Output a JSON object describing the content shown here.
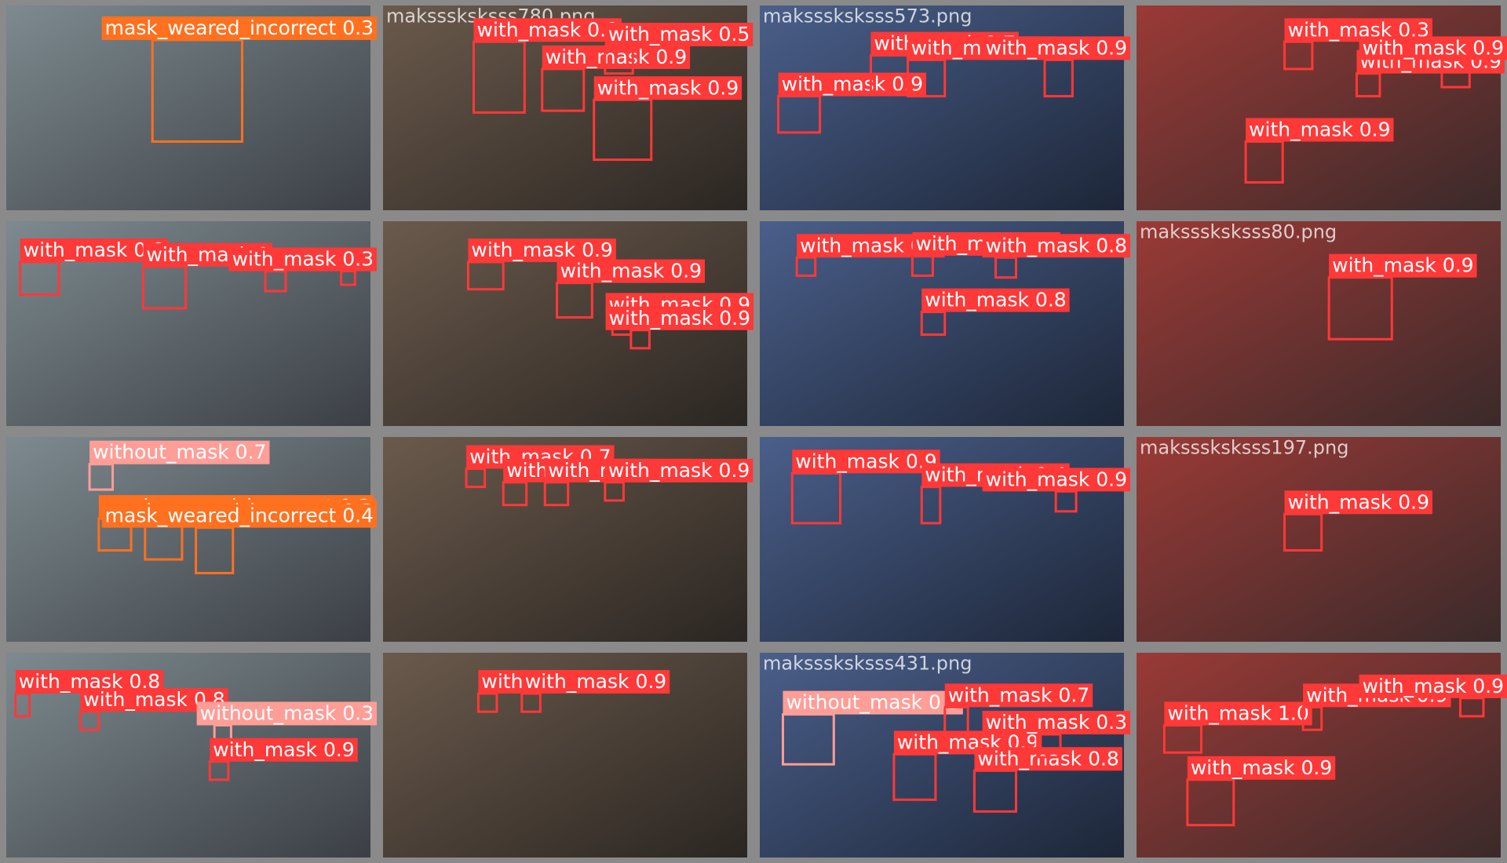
{
  "class_colors": {
    "with_mask": "#ff3838",
    "without_mask": "#ff9d97",
    "mask_weared_incorrect": "#ff701f"
  },
  "tiles": [
    {
      "detections": [
        {
          "label": "mask_weared_incorrect 0.3"
        }
      ]
    },
    {
      "filename": "maksssksksss780.png",
      "detections": [
        {
          "label": "with_mask 0.8"
        },
        {
          "label": "with_mask 0.9"
        },
        {
          "label": "with_mask 0.5"
        },
        {
          "label": "with_mask 0.9"
        }
      ]
    },
    {
      "filename": "maksssksksss573.png",
      "detections": [
        {
          "label": "with_mask 0.9"
        },
        {
          "label": "with_mask 0.7"
        },
        {
          "label": "with_mask 0.3"
        },
        {
          "label": "with_mask 0.9"
        }
      ]
    },
    {
      "detections": [
        {
          "label": "with_mask 0.9"
        },
        {
          "label": "with_mask 0.3"
        },
        {
          "label": "with_mask 0.9"
        },
        {
          "label": "with_mask 0.9"
        }
      ]
    },
    {
      "detections": [
        {
          "label": "with_mask 0.9"
        },
        {
          "label": "with_mask 0"
        },
        {
          "label": "with_mask 0.3"
        },
        {
          "label": "with_mask 0.3"
        }
      ]
    },
    {
      "detections": [
        {
          "label": "with_mask 0.9"
        },
        {
          "label": "with_mask 0.9"
        },
        {
          "label": "with_mask 0.9"
        },
        {
          "label": "with_mask 0.9"
        }
      ]
    },
    {
      "detections": [
        {
          "label": "with_mask 0.9"
        },
        {
          "label": "with_mask 0.8"
        },
        {
          "label": "with_mask 0.9"
        },
        {
          "label": "with_mask 0.8"
        }
      ]
    },
    {
      "filename": "maksssksksss80.png",
      "detections": [
        {
          "label": "with_mask 0.9"
        }
      ]
    },
    {
      "detections": [
        {
          "label": "without_mask 0.7"
        },
        {
          "label": "mask_weared_incorrect 0.3"
        },
        {
          "label": "mask_weared_incorrect 0.3"
        },
        {
          "label": "mask_weared_incorrect 0.4"
        }
      ]
    },
    {
      "detections": [
        {
          "label": "with_mask 0.7"
        },
        {
          "label": "with_mask 0.9"
        },
        {
          "label": "with_mask 0.9"
        },
        {
          "label": "with_mask 0.9"
        }
      ]
    },
    {
      "detections": [
        {
          "label": "with_mask 0.9"
        },
        {
          "label": "with_mask 0.4"
        },
        {
          "label": "with_mask 0.9"
        }
      ]
    },
    {
      "filename": "maksssksksss197.png",
      "detections": [
        {
          "label": "with_mask 0.9"
        }
      ]
    },
    {
      "detections": [
        {
          "label": "with_mask 0.8"
        },
        {
          "label": "with_mask 0.8"
        },
        {
          "label": "without_mask 0.3"
        },
        {
          "label": "with_mask 0.9"
        }
      ]
    },
    {
      "detections": [
        {
          "label": "with_mask 0.9"
        },
        {
          "label": "with_mask 0.9"
        }
      ]
    },
    {
      "filename": "maksssksksss431.png",
      "detections": [
        {
          "label": "without_mask 0.3"
        },
        {
          "label": "with_mask 0.9"
        },
        {
          "label": "with_mask 0.8"
        },
        {
          "label": "with_mask 0.7"
        },
        {
          "label": "with_mask 0.3"
        }
      ]
    },
    {
      "detections": [
        {
          "label": "with_mask 1.0"
        },
        {
          "label": "with_mask 0.9"
        },
        {
          "label": "with_mask 0.9"
        },
        {
          "label": "with_mask 0.9"
        }
      ]
    }
  ]
}
